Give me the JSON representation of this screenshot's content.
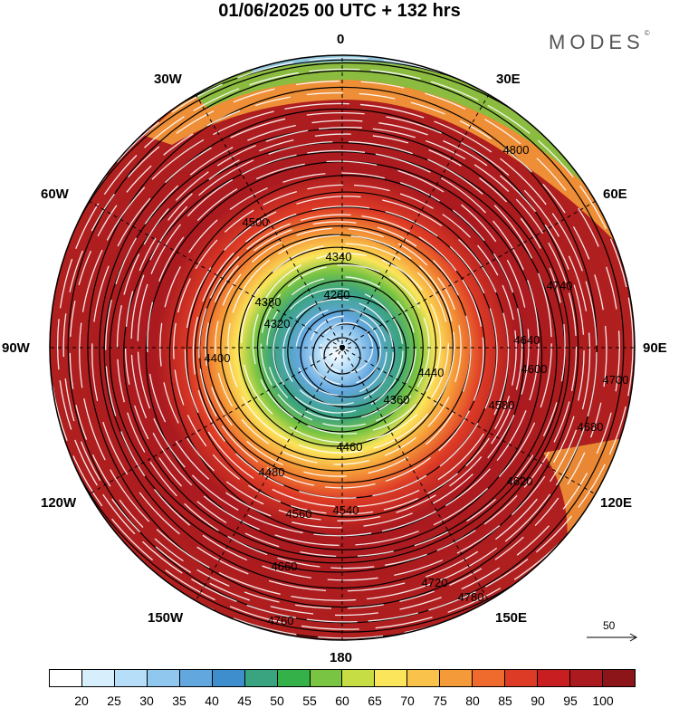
{
  "title": "01/06/2025  00 UTC  + 132 hrs",
  "brand": "MODES",
  "brand_mark": "©",
  "longitude_labels": [
    "0",
    "30E",
    "60E",
    "90E",
    "120E",
    "150E",
    "180",
    "150W",
    "120W",
    "90W",
    "60W",
    "30W"
  ],
  "contour_labels": [
    "4800",
    "4740",
    "4700",
    "4680",
    "4640",
    "4620",
    "4600",
    "4580",
    "4560",
    "4540",
    "4500",
    "4480",
    "4460",
    "4440",
    "4400",
    "4380",
    "4360",
    "4340",
    "4320",
    "4260",
    "4660",
    "4720",
    "4760",
    "4780"
  ],
  "colorbar": {
    "labels": [
      "20",
      "25",
      "30",
      "35",
      "40",
      "45",
      "50",
      "55",
      "60",
      "65",
      "70",
      "75",
      "80",
      "85",
      "90",
      "95",
      "100"
    ],
    "colors": [
      "#ffffff",
      "#d7eefc",
      "#b6def8",
      "#8fc7ee",
      "#63a7df",
      "#3e8dcc",
      "#3aa37f",
      "#35b14a",
      "#79c442",
      "#c6de43",
      "#fbe55a",
      "#f8c24b",
      "#f59a38",
      "#ee6b2d",
      "#de3b26",
      "#c81e21",
      "#aa1a1f",
      "#8c1519"
    ]
  },
  "reference_vector": "50"
}
